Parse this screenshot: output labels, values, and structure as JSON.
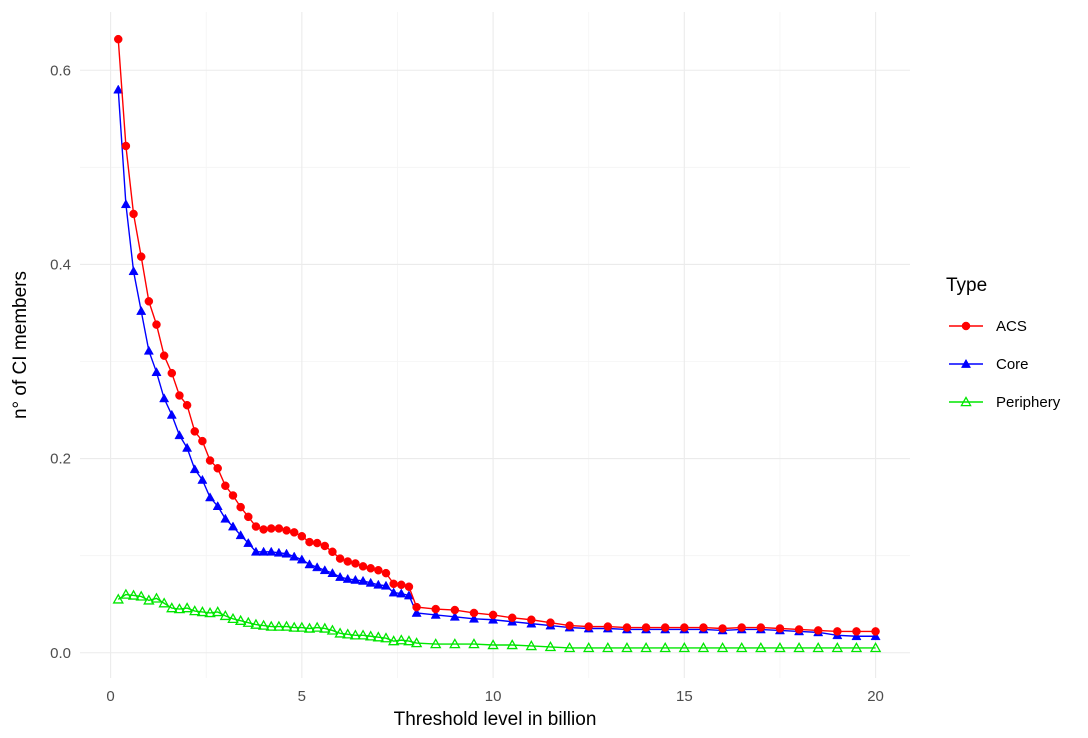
{
  "chart_data": {
    "type": "line",
    "title": "",
    "xlabel": "Threshold level in billion",
    "ylabel": "n° of CI members",
    "xlim": [
      -0.8,
      20.9
    ],
    "ylim": [
      -0.026,
      0.66
    ],
    "x_ticks": [
      0,
      5,
      10,
      15,
      20
    ],
    "y_ticks": [
      0.0,
      0.2,
      0.4,
      0.6
    ],
    "x_tick_labels": [
      "0",
      "5",
      "10",
      "15",
      "20"
    ],
    "y_tick_labels": [
      "0.0",
      "0.2",
      "0.4",
      "0.6"
    ],
    "grid": true,
    "legend": {
      "title": "Type",
      "position": "right"
    },
    "series": [
      {
        "name": "ACS",
        "color": "#ff0000",
        "marker": "filled-circle",
        "x": [
          0.2,
          0.4,
          0.6,
          0.8,
          1.0,
          1.2,
          1.4,
          1.6,
          1.8,
          2.0,
          2.2,
          2.4,
          2.6,
          2.8,
          3.0,
          3.2,
          3.4,
          3.6,
          3.8,
          4.0,
          4.2,
          4.4,
          4.6,
          4.8,
          5.0,
          5.2,
          5.4,
          5.6,
          5.8,
          6.0,
          6.2,
          6.4,
          6.6,
          6.8,
          7.0,
          7.2,
          7.4,
          7.6,
          7.8,
          8.0,
          8.5,
          9.0,
          9.5,
          10.0,
          10.5,
          11.0,
          11.5,
          12.0,
          12.5,
          13.0,
          13.5,
          14.0,
          14.5,
          15.0,
          15.5,
          16.0,
          16.5,
          17.0,
          17.5,
          18.0,
          18.5,
          19.0,
          19.5,
          20.0
        ],
        "y": [
          0.632,
          0.522,
          0.452,
          0.408,
          0.362,
          0.338,
          0.306,
          0.288,
          0.265,
          0.255,
          0.228,
          0.218,
          0.198,
          0.19,
          0.172,
          0.162,
          0.15,
          0.14,
          0.13,
          0.127,
          0.128,
          0.128,
          0.126,
          0.124,
          0.12,
          0.114,
          0.113,
          0.11,
          0.104,
          0.097,
          0.094,
          0.092,
          0.089,
          0.087,
          0.085,
          0.082,
          0.071,
          0.07,
          0.068,
          0.047,
          0.045,
          0.044,
          0.041,
          0.039,
          0.036,
          0.034,
          0.031,
          0.028,
          0.027,
          0.027,
          0.026,
          0.026,
          0.026,
          0.026,
          0.026,
          0.025,
          0.026,
          0.026,
          0.025,
          0.024,
          0.023,
          0.022,
          0.022,
          0.022
        ]
      },
      {
        "name": "Core",
        "color": "#0000ff",
        "marker": "filled-triangle",
        "x": [
          0.2,
          0.4,
          0.6,
          0.8,
          1.0,
          1.2,
          1.4,
          1.6,
          1.8,
          2.0,
          2.2,
          2.4,
          2.6,
          2.8,
          3.0,
          3.2,
          3.4,
          3.6,
          3.8,
          4.0,
          4.2,
          4.4,
          4.6,
          4.8,
          5.0,
          5.2,
          5.4,
          5.6,
          5.8,
          6.0,
          6.2,
          6.4,
          6.6,
          6.8,
          7.0,
          7.2,
          7.4,
          7.6,
          7.8,
          8.0,
          8.5,
          9.0,
          9.5,
          10.0,
          10.5,
          11.0,
          11.5,
          12.0,
          12.5,
          13.0,
          13.5,
          14.0,
          14.5,
          15.0,
          15.5,
          16.0,
          16.5,
          17.0,
          17.5,
          18.0,
          18.5,
          19.0,
          19.5,
          20.0
        ],
        "y": [
          0.58,
          0.462,
          0.393,
          0.352,
          0.311,
          0.289,
          0.262,
          0.245,
          0.224,
          0.211,
          0.189,
          0.178,
          0.16,
          0.151,
          0.138,
          0.13,
          0.121,
          0.113,
          0.104,
          0.104,
          0.104,
          0.103,
          0.102,
          0.099,
          0.096,
          0.091,
          0.088,
          0.085,
          0.082,
          0.078,
          0.076,
          0.075,
          0.074,
          0.072,
          0.07,
          0.069,
          0.062,
          0.061,
          0.059,
          0.041,
          0.039,
          0.037,
          0.035,
          0.034,
          0.032,
          0.03,
          0.028,
          0.026,
          0.025,
          0.025,
          0.024,
          0.024,
          0.024,
          0.024,
          0.024,
          0.023,
          0.024,
          0.024,
          0.023,
          0.022,
          0.021,
          0.018,
          0.017,
          0.017
        ]
      },
      {
        "name": "Periphery",
        "color": "#00e600",
        "marker": "open-triangle",
        "x": [
          0.2,
          0.4,
          0.6,
          0.8,
          1.0,
          1.2,
          1.4,
          1.6,
          1.8,
          2.0,
          2.2,
          2.4,
          2.6,
          2.8,
          3.0,
          3.2,
          3.4,
          3.6,
          3.8,
          4.0,
          4.2,
          4.4,
          4.6,
          4.8,
          5.0,
          5.2,
          5.4,
          5.6,
          5.8,
          6.0,
          6.2,
          6.4,
          6.6,
          6.8,
          7.0,
          7.2,
          7.4,
          7.6,
          7.8,
          8.0,
          8.5,
          9.0,
          9.5,
          10.0,
          10.5,
          11.0,
          11.5,
          12.0,
          12.5,
          13.0,
          13.5,
          14.0,
          14.5,
          15.0,
          15.5,
          16.0,
          16.5,
          17.0,
          17.5,
          18.0,
          18.5,
          19.0,
          19.5,
          20.0
        ],
        "y": [
          0.055,
          0.06,
          0.059,
          0.058,
          0.054,
          0.056,
          0.051,
          0.046,
          0.045,
          0.046,
          0.043,
          0.042,
          0.041,
          0.042,
          0.038,
          0.035,
          0.033,
          0.031,
          0.029,
          0.028,
          0.027,
          0.027,
          0.027,
          0.026,
          0.026,
          0.025,
          0.026,
          0.025,
          0.023,
          0.02,
          0.019,
          0.018,
          0.018,
          0.017,
          0.016,
          0.015,
          0.012,
          0.013,
          0.012,
          0.01,
          0.009,
          0.009,
          0.009,
          0.008,
          0.008,
          0.007,
          0.006,
          0.005,
          0.005,
          0.005,
          0.005,
          0.005,
          0.005,
          0.005,
          0.005,
          0.005,
          0.005,
          0.005,
          0.005,
          0.005,
          0.005,
          0.005,
          0.005,
          0.005
        ]
      }
    ]
  }
}
